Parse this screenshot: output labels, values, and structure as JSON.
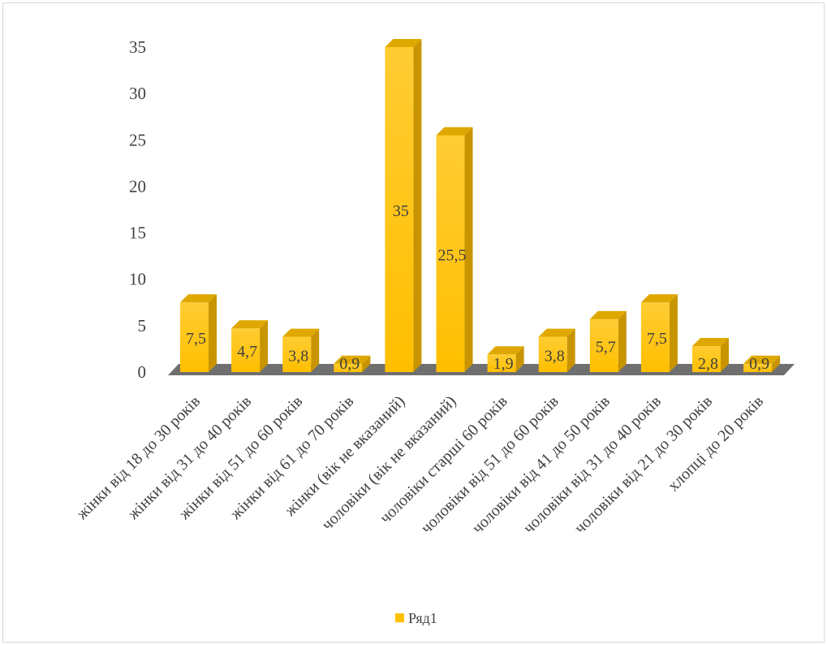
{
  "chart_data": {
    "type": "bar",
    "title": "",
    "xlabel": "",
    "ylabel": "",
    "ylim": [
      0,
      35
    ],
    "y_ticks": [
      "0",
      "5",
      "10",
      "15",
      "20",
      "25",
      "30",
      "35"
    ],
    "categories": [
      "жінки від 18 до 30 років",
      "жінки від 31 до 40 років",
      "жінки від 51 до 60 років",
      "жінки від 61 до 70 років",
      "жінки (вік не вказаний)",
      "чоловіки (вік не вказаний)",
      "чоловіки старші 60 років",
      "чоловіки від 51 до 60 років",
      "чоловіки від 41 до 50 років",
      "чоловіки від 31 до 40 років",
      "чоловіки від 21 до 30 років",
      "хлопці до 20 років"
    ],
    "series": [
      {
        "name": "Ряд1",
        "values": [
          7.5,
          4.7,
          3.8,
          0.9,
          35,
          25.5,
          1.9,
          3.8,
          5.7,
          7.5,
          2.8,
          0.9
        ],
        "labels": [
          "7,5",
          "4,7",
          "3,8",
          "0,9",
          "35",
          "25,5",
          "1,9",
          "3,8",
          "5,7",
          "7,5",
          "2,8",
          "0,9"
        ]
      }
    ],
    "grid": false,
    "legend": "bottom",
    "colors": {
      "bar_front_top": "#ffca2e",
      "bar_front_bottom": "#ffbf00",
      "bar_side": "#c89400",
      "bar_top": "#dfa800",
      "floor": "#6f6f6f",
      "legend_swatch": "#ffc000",
      "text": "#404040"
    }
  }
}
